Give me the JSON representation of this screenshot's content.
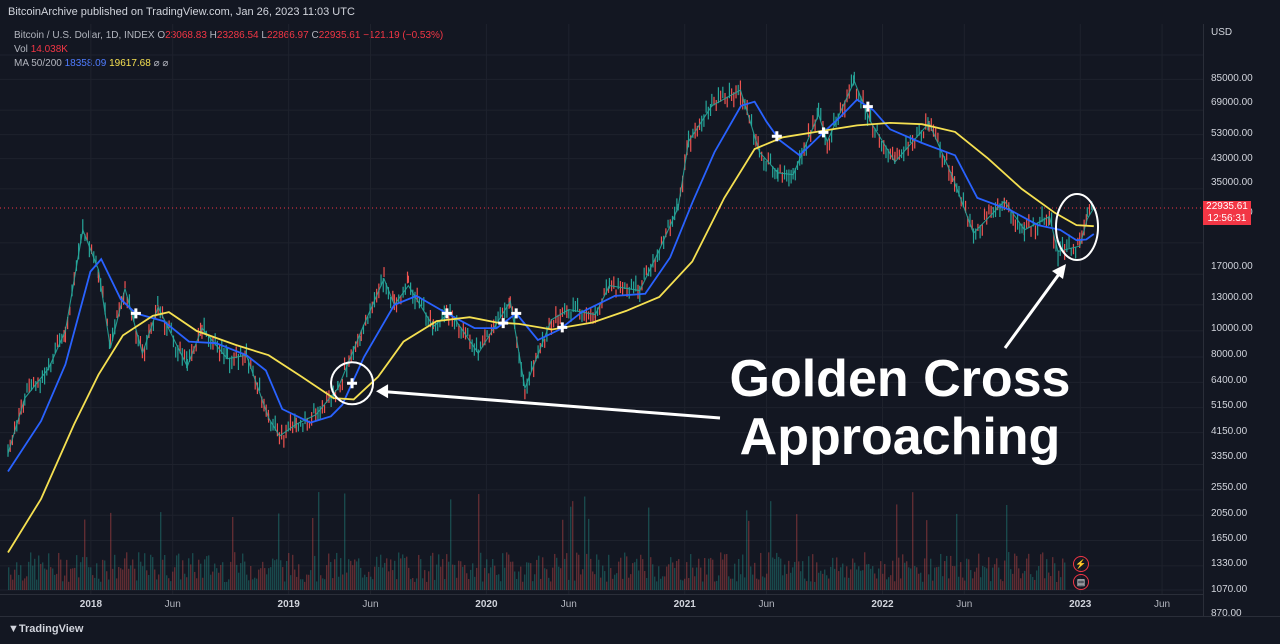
{
  "header": {
    "publisher_line": "BitcoinArchive published on TradingView.com, Jan 26, 2023 11:03 UTC"
  },
  "legend": {
    "symbol": "Bitcoin / U.S. Dollar, 1D, INDEX",
    "o_label": "O",
    "o_value": "23068.83",
    "h_label": "H",
    "h_value": "23286.54",
    "l_label": "L",
    "l_value": "22866.97",
    "c_label": "C",
    "c_value": "22935.61",
    "change": "−121.19 (−0.53%)",
    "vol_label": "Vol",
    "vol_value": "14.038K",
    "ma_label": "MA 50/200",
    "ma50_value": "18358.09",
    "ma200_value": "19617.68"
  },
  "price_axis": {
    "currency": "USD",
    "current_price": "22935.61",
    "countdown": "12:56:31"
  },
  "annotation": {
    "line1": "Golden Cross",
    "line2": "Approaching"
  },
  "footer": {
    "brand": "TradingView"
  },
  "colors": {
    "ma50": "#2962ff",
    "ma200": "#f5e051",
    "up": "#26a69a",
    "down": "#ef5350",
    "accent_red": "#f23645"
  },
  "chart_data": {
    "type": "candlestick",
    "title": "Bitcoin / U.S. Dollar, 1D, INDEX",
    "scale": "log",
    "ylim": [
      800,
      95000
    ],
    "y_ticks": [
      "85000.00",
      "69000.00",
      "53000.00",
      "43000.00",
      "35000.00",
      "27000.00",
      "17000.00",
      "13000.00",
      "10000.00",
      "8000.00",
      "6400.00",
      "5150.00",
      "4150.00",
      "3350.00",
      "2550.00",
      "2050.00",
      "1650.00",
      "1330.00",
      "1070.00",
      "870.00"
    ],
    "x_ticks": [
      "2018",
      "Jun",
      "2019",
      "Jun",
      "2020",
      "Jun",
      "2021",
      "Jun",
      "2022",
      "Jun",
      "2023",
      "Jun"
    ],
    "xlim": [
      "2017-08-01",
      "2023-08-10"
    ],
    "series": [
      {
        "name": "Price",
        "type": "line",
        "points": [
          [
            "2017-08-01",
            2800
          ],
          [
            "2017-09-01",
            4500
          ],
          [
            "2017-10-15",
            5800
          ],
          [
            "2017-11-15",
            8000
          ],
          [
            "2017-12-17",
            19000
          ],
          [
            "2018-01-15",
            13500
          ],
          [
            "2018-02-06",
            6900
          ],
          [
            "2018-03-05",
            11500
          ],
          [
            "2018-04-06",
            6600
          ],
          [
            "2018-05-05",
            9800
          ],
          [
            "2018-06-28",
            5900
          ],
          [
            "2018-07-25",
            8200
          ],
          [
            "2018-09-10",
            6300
          ],
          [
            "2018-10-15",
            6500
          ],
          [
            "2018-11-25",
            3800
          ],
          [
            "2018-12-15",
            3250
          ],
          [
            "2019-01-15",
            3600
          ],
          [
            "2019-02-20",
            3900
          ],
          [
            "2019-04-02",
            4900
          ],
          [
            "2019-05-15",
            8000
          ],
          [
            "2019-06-26",
            12500
          ],
          [
            "2019-07-15",
            10000
          ],
          [
            "2019-08-10",
            11800
          ],
          [
            "2019-09-25",
            8300
          ],
          [
            "2019-10-26",
            9400
          ],
          [
            "2019-12-17",
            6600
          ],
          [
            "2020-02-14",
            10300
          ],
          [
            "2020-03-12",
            4900
          ],
          [
            "2020-04-30",
            8800
          ],
          [
            "2020-06-01",
            9600
          ],
          [
            "2020-07-20",
            9200
          ],
          [
            "2020-08-15",
            11800
          ],
          [
            "2020-10-10",
            11300
          ],
          [
            "2020-11-15",
            16000
          ],
          [
            "2020-12-20",
            23000
          ],
          [
            "2021-01-08",
            40500
          ],
          [
            "2021-02-20",
            55000
          ],
          [
            "2021-04-14",
            63000
          ],
          [
            "2021-05-19",
            37000
          ],
          [
            "2021-06-22",
            31000
          ],
          [
            "2021-07-20",
            30500
          ],
          [
            "2021-09-05",
            51000
          ],
          [
            "2021-09-21",
            40500
          ],
          [
            "2021-11-10",
            68000
          ],
          [
            "2021-12-10",
            48000
          ],
          [
            "2022-01-24",
            34000
          ],
          [
            "2022-03-28",
            47500
          ],
          [
            "2022-05-10",
            30000
          ],
          [
            "2022-06-18",
            18500
          ],
          [
            "2022-08-14",
            24300
          ],
          [
            "2022-09-20",
            19000
          ],
          [
            "2022-11-05",
            21300
          ],
          [
            "2022-11-21",
            15800
          ],
          [
            "2022-12-31",
            16550
          ],
          [
            "2023-01-14",
            20900
          ],
          [
            "2023-01-26",
            22935
          ]
        ]
      },
      {
        "name": "MA 50",
        "type": "line",
        "points": [
          [
            "2017-08-01",
            2400
          ],
          [
            "2017-10-01",
            3700
          ],
          [
            "2017-11-15",
            6000
          ],
          [
            "2017-12-31",
            13300
          ],
          [
            "2018-01-20",
            14800
          ],
          [
            "2018-02-25",
            10500
          ],
          [
            "2018-03-25",
            9300
          ],
          [
            "2018-05-15",
            8700
          ],
          [
            "2018-07-01",
            7300
          ],
          [
            "2018-08-20",
            7200
          ],
          [
            "2018-10-15",
            6500
          ],
          [
            "2018-11-20",
            5700
          ],
          [
            "2018-12-20",
            4100
          ],
          [
            "2019-02-10",
            3650
          ],
          [
            "2019-03-20",
            3850
          ],
          [
            "2019-04-10",
            4250
          ],
          [
            "2019-05-20",
            6400
          ],
          [
            "2019-07-15",
            10000
          ],
          [
            "2019-08-25",
            10800
          ],
          [
            "2019-10-20",
            9300
          ],
          [
            "2019-12-10",
            8200
          ],
          [
            "2020-01-20",
            8200
          ],
          [
            "2020-02-25",
            9300
          ],
          [
            "2020-04-05",
            7400
          ],
          [
            "2020-05-15",
            8100
          ],
          [
            "2020-06-25",
            9400
          ],
          [
            "2020-08-25",
            10800
          ],
          [
            "2020-10-20",
            11000
          ],
          [
            "2020-12-05",
            15000
          ],
          [
            "2021-01-15",
            24000
          ],
          [
            "2021-02-25",
            37000
          ],
          [
            "2021-04-15",
            55000
          ],
          [
            "2021-05-10",
            57000
          ],
          [
            "2021-06-01",
            48000
          ],
          [
            "2021-06-25",
            41000
          ],
          [
            "2021-08-01",
            36000
          ],
          [
            "2021-09-15",
            44000
          ],
          [
            "2021-10-15",
            50000
          ],
          [
            "2021-11-15",
            58000
          ],
          [
            "2021-12-15",
            53000
          ],
          [
            "2022-01-15",
            45000
          ],
          [
            "2022-03-15",
            40000
          ],
          [
            "2022-05-15",
            36000
          ],
          [
            "2022-06-25",
            25000
          ],
          [
            "2022-08-25",
            22500
          ],
          [
            "2022-10-15",
            19800
          ],
          [
            "2022-11-25",
            19000
          ],
          [
            "2022-12-25",
            17400
          ],
          [
            "2023-01-12",
            17500
          ],
          [
            "2023-01-26",
            18358
          ]
        ]
      },
      {
        "name": "MA 200",
        "type": "line",
        "points": [
          [
            "2017-08-01",
            1200
          ],
          [
            "2017-10-01",
            1900
          ],
          [
            "2017-12-01",
            3600
          ],
          [
            "2018-01-15",
            5500
          ],
          [
            "2018-03-01",
            7700
          ],
          [
            "2018-04-25",
            9100
          ],
          [
            "2018-05-25",
            9400
          ],
          [
            "2018-07-15",
            8000
          ],
          [
            "2018-09-25",
            7100
          ],
          [
            "2018-11-25",
            6500
          ],
          [
            "2019-01-25",
            5400
          ],
          [
            "2019-03-25",
            4500
          ],
          [
            "2019-05-01",
            4450
          ],
          [
            "2019-06-15",
            5400
          ],
          [
            "2019-08-01",
            7300
          ],
          [
            "2019-10-01",
            8700
          ],
          [
            "2019-12-01",
            9000
          ],
          [
            "2020-01-20",
            8600
          ],
          [
            "2020-03-01",
            8500
          ],
          [
            "2020-05-01",
            8100
          ],
          [
            "2020-07-15",
            8600
          ],
          [
            "2020-09-15",
            9500
          ],
          [
            "2020-11-15",
            10700
          ],
          [
            "2021-01-15",
            14500
          ],
          [
            "2021-03-15",
            25000
          ],
          [
            "2021-05-10",
            38000
          ],
          [
            "2021-07-01",
            42000
          ],
          [
            "2021-09-15",
            44500
          ],
          [
            "2021-11-15",
            46500
          ],
          [
            "2022-01-15",
            47500
          ],
          [
            "2022-03-15",
            47000
          ],
          [
            "2022-05-15",
            44000
          ],
          [
            "2022-07-15",
            35000
          ],
          [
            "2022-09-15",
            27000
          ],
          [
            "2022-11-15",
            22000
          ],
          [
            "2022-12-25",
            19800
          ],
          [
            "2023-01-26",
            19617
          ]
        ]
      }
    ],
    "golden_cross_markers": [
      "2018-03-25",
      "2019-04-28",
      "2019-10-20",
      "2020-02-01",
      "2020-02-25",
      "2020-05-20",
      "2021-06-20",
      "2021-09-14",
      "2021-12-05"
    ],
    "highlight_circles": [
      "2019-04-28",
      "2023-01-26"
    ]
  }
}
